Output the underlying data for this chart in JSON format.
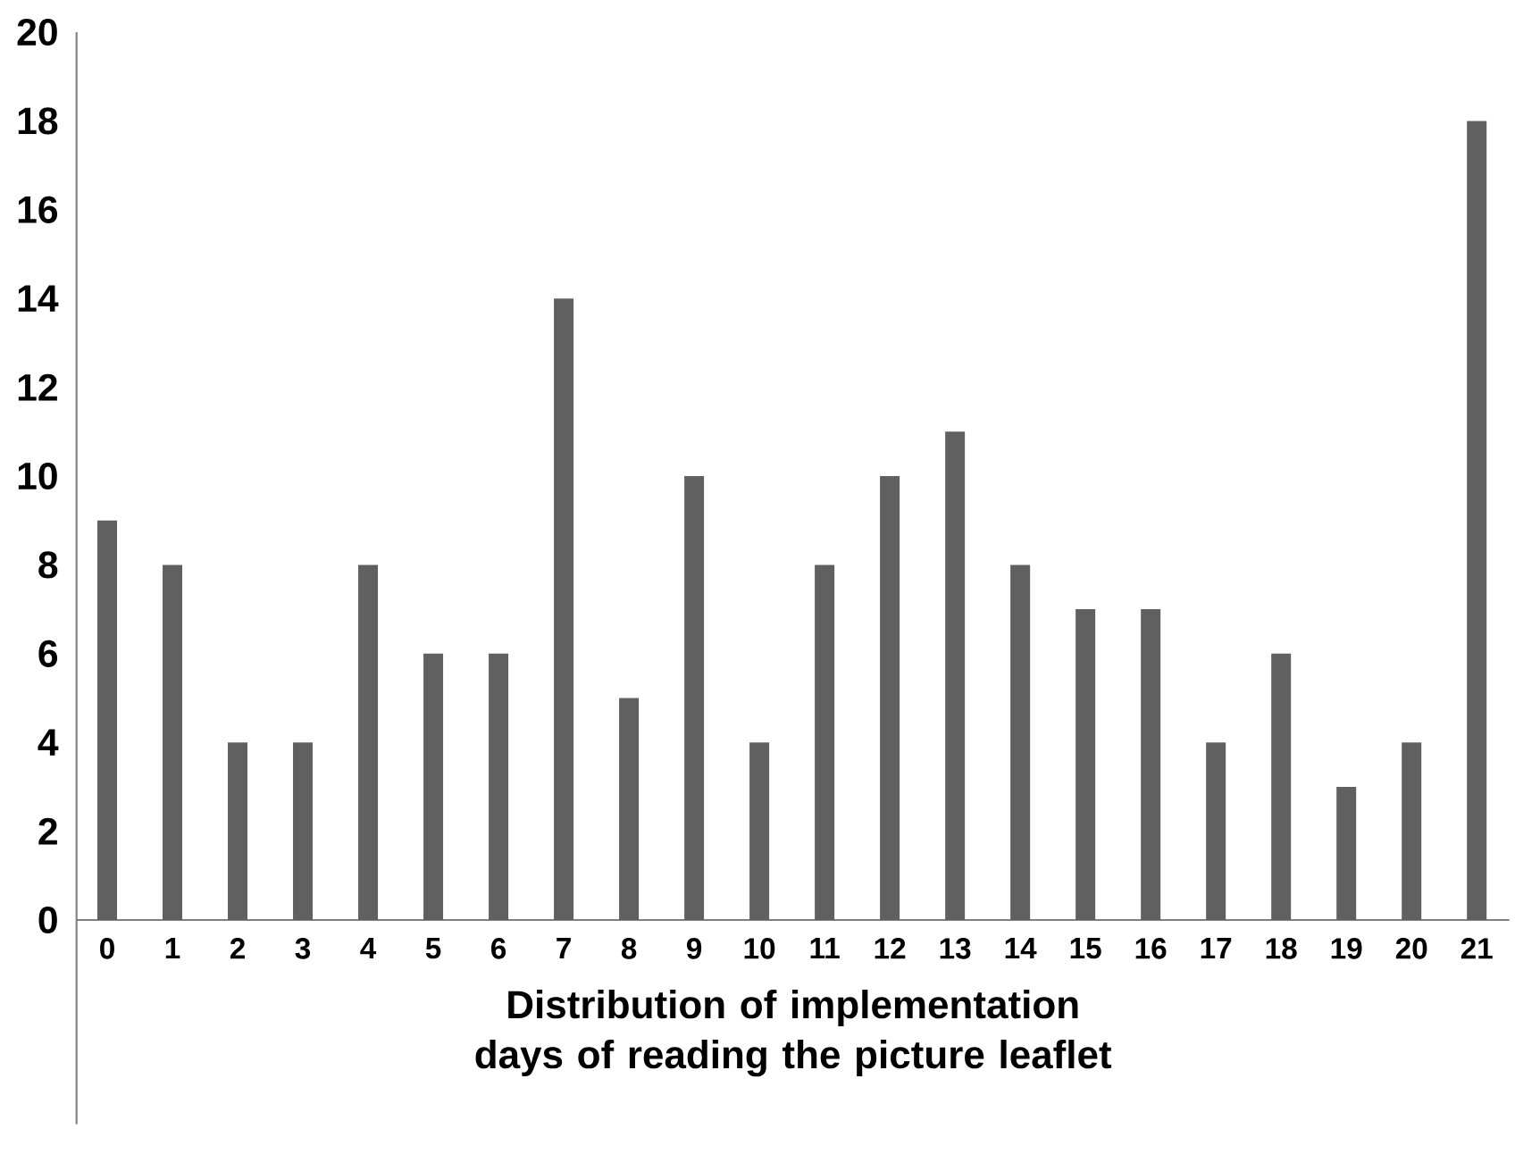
{
  "chart_data": {
    "type": "bar",
    "xlabel": "Distribution of implementation days of reading the picture leaflet",
    "categories": [
      "0",
      "1",
      "2",
      "3",
      "4",
      "5",
      "6",
      "7",
      "8",
      "9",
      "10",
      "11",
      "12",
      "13",
      "14",
      "15",
      "16",
      "17",
      "18",
      "19",
      "20",
      "21"
    ],
    "values": [
      9,
      8,
      4,
      4,
      8,
      6,
      6,
      14,
      5,
      10,
      4,
      8,
      10,
      11,
      8,
      7,
      7,
      4,
      6,
      3,
      4,
      18
    ],
    "color": "#606060",
    "ylim": [
      0,
      20
    ],
    "yticks": [
      0,
      2,
      4,
      6,
      8,
      10,
      12,
      14,
      16,
      18,
      20
    ]
  }
}
